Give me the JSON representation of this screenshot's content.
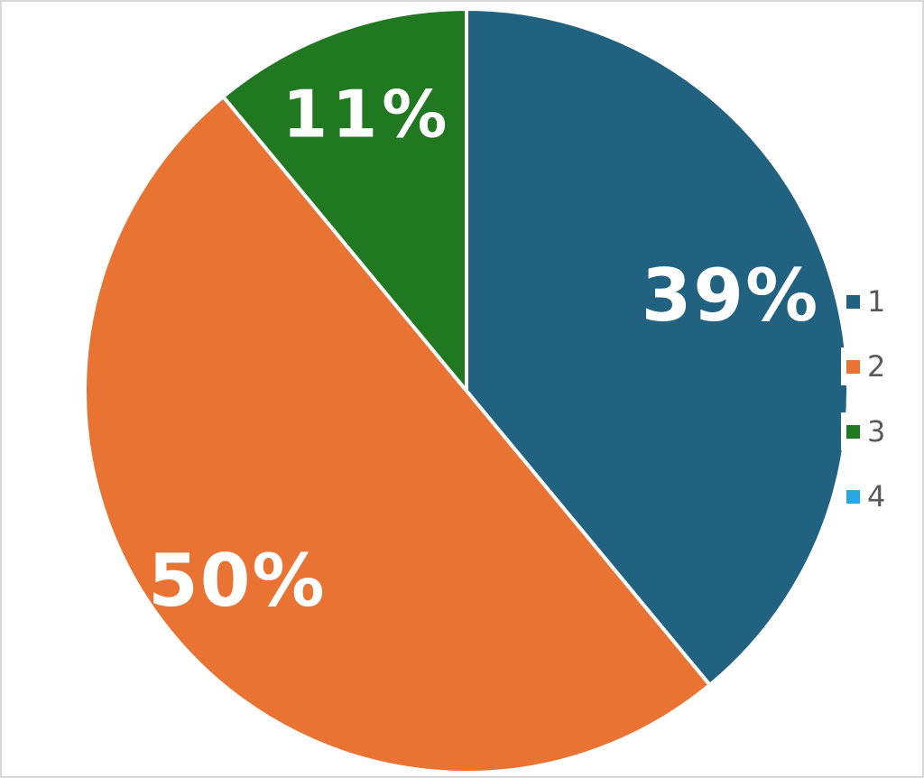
{
  "chart_data": {
    "type": "pie",
    "legend_position": "right",
    "start_angle": "12-oclock",
    "direction": "clockwise",
    "categories": [
      "1",
      "2",
      "3",
      "4"
    ],
    "series": [
      {
        "category": "1",
        "value": 39,
        "display_label": "39%",
        "color": "#206280"
      },
      {
        "category": "2",
        "value": 50,
        "display_label": "50%",
        "color": "#E87332"
      },
      {
        "category": "3",
        "value": 11,
        "display_label": "11%",
        "color": "#207820"
      },
      {
        "category": "4",
        "value": 0,
        "display_label": "",
        "color": "#29A8DF"
      }
    ],
    "slice_label_color": "#FFFFFF",
    "slice_separator_color": "#FFFFFF",
    "legend_text_color": "#595959"
  },
  "figure": {
    "background": "#FFFFFF",
    "border_color": "#D9D9D9"
  }
}
